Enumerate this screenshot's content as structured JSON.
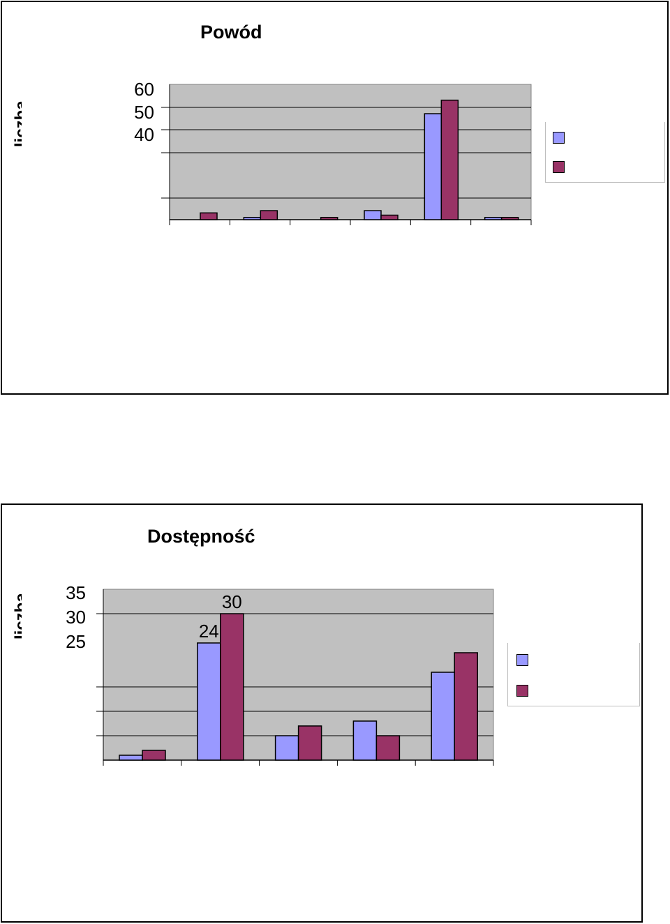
{
  "colors": {
    "series1": "#9999ff",
    "series2": "#993366",
    "plot_bg": "#c0c0c0",
    "gridline": "#000000"
  },
  "chart_data": [
    {
      "type": "bar",
      "title": "Powód",
      "ylabel": "liczba",
      "yticks_visible": [
        "60",
        "50",
        "40"
      ],
      "ylim": [
        0,
        60
      ],
      "categories": [
        "",
        "",
        "",
        "",
        "",
        ""
      ],
      "series": [
        {
          "values": [
            0,
            1,
            0,
            4,
            47,
            1
          ]
        },
        {
          "values": [
            3,
            4,
            1,
            2,
            53,
            1
          ]
        }
      ],
      "data_labels": [],
      "grid": true,
      "legend": "right"
    },
    {
      "type": "bar",
      "title": "Dostępność",
      "ylabel": "liczba",
      "yticks_visible": [
        "35",
        "30",
        "25"
      ],
      "ylim": [
        0,
        35
      ],
      "categories": [
        "",
        "",
        "",
        "",
        ""
      ],
      "series": [
        {
          "values": [
            1,
            24,
            5,
            8,
            18
          ]
        },
        {
          "values": [
            2,
            30,
            7,
            5,
            22
          ]
        }
      ],
      "data_labels": [
        {
          "series": 0,
          "index": 1,
          "text": "24"
        },
        {
          "series": 1,
          "index": 1,
          "text": "30"
        }
      ],
      "grid": true,
      "legend": "right"
    }
  ]
}
